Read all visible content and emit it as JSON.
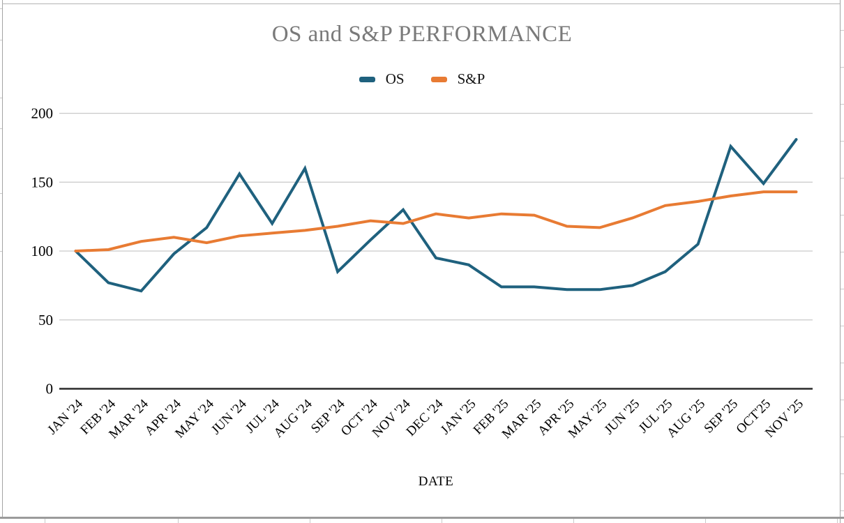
{
  "chart": {
    "title": "OS and S&P PERFORMANCE",
    "xlabel": "DATE"
  },
  "chart_data": {
    "type": "line",
    "title": "OS and S&P PERFORMANCE",
    "xlabel": "DATE",
    "ylabel": "",
    "ylim": [
      0,
      200
    ],
    "yticks": [
      0,
      50,
      100,
      150,
      200
    ],
    "grid": true,
    "legend_position": "top-center",
    "categories": [
      "JAN '24",
      "FEB '24",
      "MAR '24",
      "APR '24",
      "MAY '24",
      "JUN '24",
      "JUL '24",
      "AUG '24",
      "SEP '24",
      "OCT '24",
      "NOV '24",
      "DEC '24",
      "JAN '25",
      "FEB '25",
      "MAR '25",
      "APR '25",
      "MAY '25",
      "JUN '25",
      "JUL '25",
      "AUG '25",
      "SEP '25",
      "OCT'25",
      "NOV '25"
    ],
    "series": [
      {
        "name": "OS",
        "color": "#1f617e",
        "values": [
          100,
          77,
          71,
          98,
          117,
          156,
          120,
          160,
          85,
          108,
          130,
          95,
          90,
          74,
          74,
          72,
          72,
          75,
          85,
          105,
          176,
          149,
          181
        ]
      },
      {
        "name": "S&P",
        "color": "#e87b33",
        "values": [
          100,
          101,
          107,
          110,
          106,
          111,
          113,
          115,
          118,
          122,
          120,
          127,
          124,
          127,
          126,
          118,
          117,
          124,
          133,
          136,
          140,
          143,
          143
        ]
      }
    ],
    "colors": {
      "title_text": "#7a7a7a",
      "gridline": "#c9c9c9",
      "axis_line": "#2a2a2a",
      "tick_text": "#000000"
    }
  }
}
